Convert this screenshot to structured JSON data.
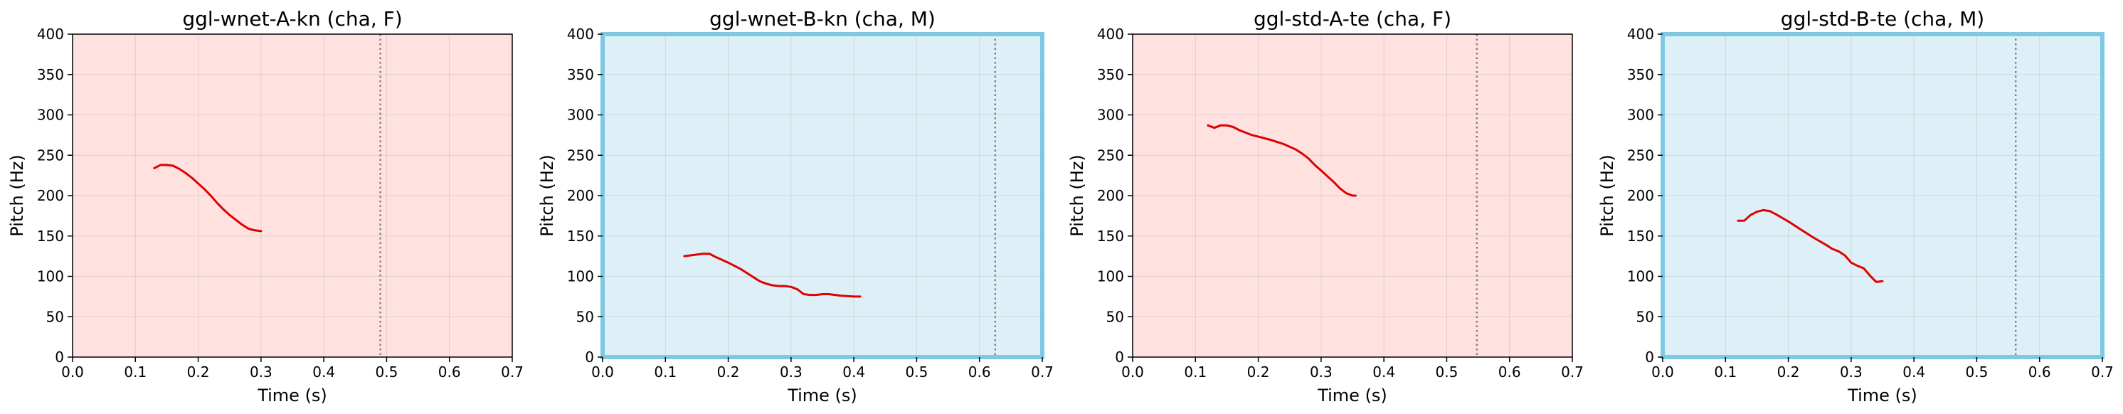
{
  "chart_data": [
    {
      "type": "line",
      "title": "ggl-wnet-A-kn (cha, F)",
      "xlabel": "Time (s)",
      "ylabel": "Pitch (Hz)",
      "xlim": [
        0,
        0.7
      ],
      "ylim": [
        0,
        400
      ],
      "xticks": [
        "0.0",
        "0.1",
        "0.2",
        "0.3",
        "0.4",
        "0.5",
        "0.6",
        "0.7"
      ],
      "yticks": [
        "0",
        "50",
        "100",
        "150",
        "200",
        "250",
        "300",
        "350",
        "400"
      ],
      "grid": true,
      "background": "#ffe2e0",
      "highlight_border": false,
      "marker_x": 0.49,
      "series": [
        {
          "color": "#e00000",
          "x": [
            0.13,
            0.14,
            0.15,
            0.16,
            0.17,
            0.18,
            0.19,
            0.2,
            0.21,
            0.22,
            0.23,
            0.24,
            0.25,
            0.26,
            0.27,
            0.28,
            0.29,
            0.3
          ],
          "y": [
            234,
            238,
            238,
            237,
            233,
            228,
            222,
            215,
            208,
            200,
            191,
            183,
            176,
            170,
            164,
            159,
            157,
            156
          ]
        }
      ]
    },
    {
      "type": "line",
      "title": "ggl-wnet-B-kn (cha, M)",
      "xlabel": "Time (s)",
      "ylabel": "Pitch (Hz)",
      "xlim": [
        0,
        0.7
      ],
      "ylim": [
        0,
        400
      ],
      "xticks": [
        "0.0",
        "0.1",
        "0.2",
        "0.3",
        "0.4",
        "0.5",
        "0.6",
        "0.7"
      ],
      "yticks": [
        "0",
        "50",
        "100",
        "150",
        "200",
        "250",
        "300",
        "350",
        "400"
      ],
      "grid": true,
      "background": "#def0f7",
      "highlight_border": true,
      "border_color": "#7ec8e3",
      "marker_x": 0.625,
      "series": [
        {
          "color": "#e00000",
          "x": [
            0.13,
            0.14,
            0.15,
            0.16,
            0.17,
            0.18,
            0.2,
            0.22,
            0.24,
            0.25,
            0.26,
            0.27,
            0.28,
            0.29,
            0.3,
            0.31,
            0.32,
            0.33,
            0.34,
            0.35,
            0.36,
            0.38,
            0.4,
            0.41
          ],
          "y": [
            125,
            126,
            127,
            128,
            128,
            124,
            117,
            109,
            99,
            94,
            91,
            89,
            88,
            88,
            87,
            84,
            78,
            77,
            77,
            78,
            78,
            76,
            75,
            75
          ]
        }
      ]
    },
    {
      "type": "line",
      "title": "ggl-std-A-te (cha, F)",
      "xlabel": "Time (s)",
      "ylabel": "Pitch (Hz)",
      "xlim": [
        0,
        0.7
      ],
      "ylim": [
        0,
        400
      ],
      "xticks": [
        "0.0",
        "0.1",
        "0.2",
        "0.3",
        "0.4",
        "0.5",
        "0.6",
        "0.7"
      ],
      "yticks": [
        "0",
        "50",
        "100",
        "150",
        "200",
        "250",
        "300",
        "350",
        "400"
      ],
      "grid": true,
      "background": "#ffe2e0",
      "highlight_border": false,
      "marker_x": 0.548,
      "series": [
        {
          "color": "#e00000",
          "x": [
            0.12,
            0.13,
            0.14,
            0.15,
            0.16,
            0.17,
            0.18,
            0.19,
            0.2,
            0.22,
            0.24,
            0.26,
            0.27,
            0.28,
            0.29,
            0.3,
            0.31,
            0.32,
            0.33,
            0.34,
            0.35,
            0.355
          ],
          "y": [
            287,
            284,
            287,
            287,
            285,
            281,
            278,
            275,
            273,
            269,
            264,
            257,
            252,
            246,
            238,
            231,
            224,
            217,
            209,
            203,
            200,
            200
          ]
        }
      ]
    },
    {
      "type": "line",
      "title": "ggl-std-B-te (cha, M)",
      "xlabel": "Time (s)",
      "ylabel": "Pitch (Hz)",
      "xlim": [
        0,
        0.7
      ],
      "ylim": [
        0,
        400
      ],
      "xticks": [
        "0.0",
        "0.1",
        "0.2",
        "0.3",
        "0.4",
        "0.5",
        "0.6",
        "0.7"
      ],
      "yticks": [
        "0",
        "50",
        "100",
        "150",
        "200",
        "250",
        "300",
        "350",
        "400"
      ],
      "grid": true,
      "background": "#def0f7",
      "highlight_border": true,
      "border_color": "#7ec8e3",
      "marker_x": 0.562,
      "series": [
        {
          "color": "#e00000",
          "x": [
            0.12,
            0.13,
            0.14,
            0.15,
            0.16,
            0.17,
            0.18,
            0.2,
            0.22,
            0.24,
            0.26,
            0.27,
            0.28,
            0.29,
            0.3,
            0.31,
            0.32,
            0.33,
            0.34,
            0.35
          ],
          "y": [
            169,
            169,
            176,
            180,
            182,
            181,
            177,
            168,
            158,
            148,
            139,
            134,
            131,
            126,
            117,
            113,
            110,
            101,
            93,
            94
          ]
        }
      ]
    }
  ]
}
